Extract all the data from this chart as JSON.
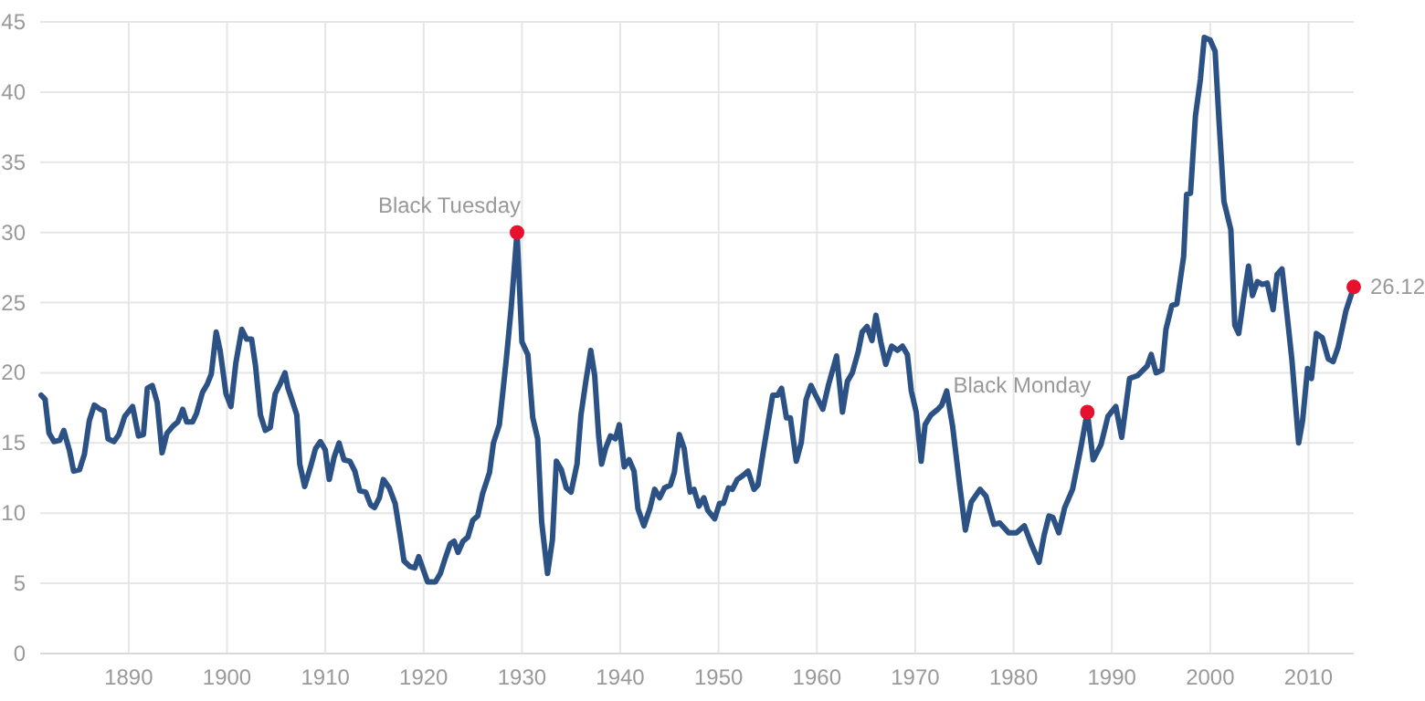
{
  "chart_data": {
    "type": "line",
    "xlim": [
      1881,
      2014.6
    ],
    "xticks": [
      1890,
      1900,
      1910,
      1920,
      1930,
      1940,
      1950,
      1960,
      1970,
      1980,
      1990,
      2000,
      2010
    ],
    "ylim": [
      0,
      45
    ],
    "yticks": [
      0,
      5,
      10,
      15,
      20,
      25,
      30,
      35,
      40,
      45
    ],
    "grid": true,
    "marker": "none",
    "line_style": "solid",
    "series": [
      {
        "color": "#2c5285",
        "x": [
          1881.1,
          1881.5,
          1881.9,
          1882.4,
          1883,
          1883.4,
          1884,
          1884.4,
          1885,
          1885.5,
          1886,
          1886.5,
          1887.1,
          1887.5,
          1887.9,
          1888.5,
          1889,
          1889.6,
          1890.4,
          1891,
          1891.5,
          1891.9,
          1892.4,
          1892.9,
          1893.4,
          1893.9,
          1894.5,
          1895,
          1895.5,
          1895.9,
          1896.5,
          1896.9,
          1897.5,
          1898,
          1898.4,
          1898.9,
          1899.3,
          1899.9,
          1900.4,
          1900.9,
          1901.5,
          1902,
          1902.5,
          1902.9,
          1903.4,
          1903.9,
          1904.4,
          1904.9,
          1905.4,
          1905.9,
          1906.2,
          1906.5,
          1907.1,
          1907.4,
          1907.9,
          1908.5,
          1909,
          1909.5,
          1910,
          1910.4,
          1910.9,
          1911.4,
          1911.9,
          1912.5,
          1913,
          1913.5,
          1914.1,
          1914.6,
          1915,
          1915.5,
          1915.9,
          1916.5,
          1917.1,
          1917.6,
          1918,
          1918.6,
          1919.1,
          1919.5,
          1920,
          1920.4,
          1921.2,
          1921.7,
          1922.2,
          1922.7,
          1923.1,
          1923.5,
          1924,
          1924.5,
          1925,
          1925.5,
          1926,
          1926.7,
          1927.1,
          1927.7,
          1928.4,
          1928.9,
          1929.5,
          1930,
          1930.6,
          1931.1,
          1931.6,
          1932,
          1932.6,
          1933.1,
          1933.5,
          1934,
          1934.5,
          1935,
          1935.6,
          1936,
          1936.5,
          1937,
          1937.4,
          1937.8,
          1938.1,
          1938.5,
          1939,
          1939.5,
          1939.9,
          1940.4,
          1940.9,
          1941.4,
          1941.8,
          1942.4,
          1943,
          1943.5,
          1944,
          1944.5,
          1945.1,
          1945.5,
          1946,
          1946.5,
          1946.8,
          1947.1,
          1947.5,
          1948,
          1948.5,
          1948.9,
          1949.6,
          1950.1,
          1950.5,
          1951,
          1951.4,
          1951.9,
          1952.5,
          1953,
          1953.6,
          1954,
          1954.5,
          1955,
          1955.5,
          1956,
          1956.4,
          1956.9,
          1957.3,
          1957.9,
          1958.4,
          1958.9,
          1959.4,
          1959.8,
          1960.6,
          1961.2,
          1962,
          1962.6,
          1963.1,
          1963.6,
          1964.2,
          1964.6,
          1965.1,
          1965.6,
          1966,
          1966.5,
          1967,
          1967.6,
          1968.2,
          1968.7,
          1969.2,
          1969.6,
          1970.1,
          1970.6,
          1971,
          1971.6,
          1972.3,
          1972.7,
          1973.2,
          1973.8,
          1974.5,
          1975.1,
          1975.7,
          1976.6,
          1977.2,
          1978,
          1978.6,
          1979.5,
          1980.3,
          1981.1,
          1981.8,
          1982.6,
          1983.1,
          1983.6,
          1984,
          1984.6,
          1985.2,
          1986,
          1986.8,
          1987.5,
          1988.1,
          1988.9,
          1989.6,
          1990.4,
          1991,
          1991.8,
          1992.6,
          1993.6,
          1994,
          1994.5,
          1995.1,
          1995.5,
          1996.1,
          1996.6,
          1997.3,
          1997.6,
          1998,
          1998.5,
          1999,
          1999.4,
          2000,
          2000.5,
          2000.9,
          2001.4,
          2002.1,
          2002.5,
          2002.9,
          2003.4,
          2003.9,
          2004.3,
          2004.8,
          2005.3,
          2005.8,
          2006.4,
          2006.8,
          2007.3,
          2007.7,
          2008.3,
          2009,
          2009.4,
          2009.9,
          2010.3,
          2010.8,
          2011.4,
          2012,
          2012.5,
          2013,
          2013.8,
          2014.6
        ],
        "values": [
          18.4,
          18.1,
          15.7,
          15.1,
          15.2,
          15.9,
          14.4,
          13,
          13.1,
          14.2,
          16.6,
          17.7,
          17.4,
          17.3,
          15.3,
          15.1,
          15.6,
          16.9,
          17.6,
          15.5,
          15.6,
          18.9,
          19.1,
          17.9,
          14.3,
          15.7,
          16.2,
          16.5,
          17.4,
          16.5,
          16.5,
          17.1,
          18.6,
          19.2,
          19.9,
          22.9,
          21.6,
          18.5,
          17.6,
          20.7,
          23.1,
          22.4,
          22.4,
          20.5,
          17,
          15.9,
          16.1,
          18.5,
          19.2,
          20,
          18.9,
          18.3,
          17,
          13.5,
          11.9,
          13.3,
          14.6,
          15.1,
          14.5,
          12.4,
          14,
          15,
          13.8,
          13.7,
          13,
          11.6,
          11.5,
          10.6,
          10.4,
          11.1,
          12.4,
          11.8,
          10.7,
          8.5,
          6.6,
          6.2,
          6.1,
          6.9,
          5.9,
          5.1,
          5.1,
          5.7,
          6.8,
          7.8,
          8,
          7.2,
          8,
          8.3,
          9.5,
          9.8,
          11.4,
          12.9,
          15,
          16.3,
          20.9,
          24.6,
          30,
          22.2,
          21.3,
          16.8,
          15.3,
          9.4,
          5.7,
          8.1,
          13.7,
          13.1,
          11.8,
          11.5,
          13.5,
          17,
          19.4,
          21.6,
          19.8,
          15.5,
          13.5,
          14.6,
          15.5,
          15.3,
          16.3,
          13.3,
          13.8,
          13,
          10.3,
          9.1,
          10.3,
          11.7,
          11.1,
          11.8,
          12,
          12.9,
          15.6,
          14.6,
          12.9,
          11.5,
          11.7,
          10.5,
          11.1,
          10.2,
          9.6,
          10.7,
          10.7,
          11.8,
          11.7,
          12.4,
          12.7,
          13,
          11.7,
          12,
          14.2,
          16.3,
          18.4,
          18.4,
          18.9,
          16.8,
          16.8,
          13.7,
          15,
          18.1,
          19.1,
          18.5,
          17.4,
          19.2,
          21.2,
          17.2,
          19.4,
          20,
          21.5,
          22.9,
          23.3,
          22.3,
          24.1,
          22.2,
          20.6,
          21.9,
          21.6,
          21.9,
          21.3,
          18.7,
          17.2,
          13.7,
          16.3,
          17,
          17.4,
          17.7,
          18.7,
          16.2,
          12.1,
          8.8,
          10.8,
          11.7,
          11.2,
          9.2,
          9.3,
          8.6,
          8.6,
          9.1,
          7.8,
          6.5,
          8.4,
          9.8,
          9.7,
          8.6,
          10.4,
          11.7,
          14.5,
          17.2,
          13.8,
          14.9,
          16.9,
          17.6,
          15.4,
          19.6,
          19.8,
          20.5,
          21.3,
          20,
          20.2,
          23.1,
          24.8,
          24.9,
          28.3,
          32.7,
          32.8,
          38.3,
          40.9,
          43.9,
          43.7,
          42.9,
          37.9,
          32.2,
          30.2,
          23.4,
          22.8,
          25.3,
          27.6,
          25.5,
          26.5,
          26.3,
          26.4,
          24.5,
          27,
          27.4,
          24.9,
          21,
          15,
          16.6,
          20.3,
          19.6,
          22.8,
          22.5,
          21,
          20.8,
          21.8,
          24.4,
          26.12
        ]
      },
      {
        "type": "scatter",
        "color": "#e8112d",
        "marker": "circle",
        "x": [
          1929.5,
          1987.5,
          2014.6
        ],
        "values": [
          30,
          17.2,
          26.12
        ]
      }
    ],
    "annotations": [
      {
        "text": "Black Tuesday",
        "x": 1929.5,
        "y": 30
      },
      {
        "text": "Black Monday",
        "x": 1987.5,
        "y": 17.2
      },
      {
        "text": "26.12",
        "x": 2014.6,
        "y": 26.12
      }
    ]
  }
}
